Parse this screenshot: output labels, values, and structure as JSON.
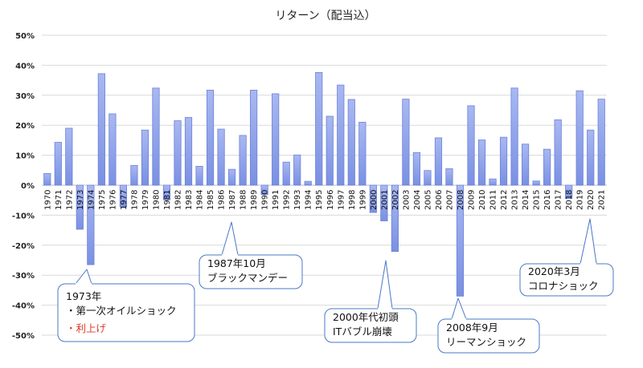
{
  "chart_data": {
    "type": "bar",
    "title": "リターン（配当込）",
    "ylim": [
      -50,
      50
    ],
    "yticks": [
      "50%",
      "40%",
      "30%",
      "20%",
      "10%",
      "0%",
      "-10%",
      "-20%",
      "-30%",
      "-40%",
      "-50%"
    ],
    "categories": [
      "1970",
      "1971",
      "1972",
      "1973",
      "1974",
      "1975",
      "1976",
      "1977",
      "1978",
      "1979",
      "1980",
      "1981",
      "1982",
      "1983",
      "1984",
      "1985",
      "1986",
      "1987",
      "1988",
      "1989",
      "1990",
      "1991",
      "1992",
      "1993",
      "1994",
      "1995",
      "1996",
      "1997",
      "1998",
      "1999",
      "2000",
      "2001",
      "2002",
      "2003",
      "2004",
      "2005",
      "2006",
      "2007",
      "2008",
      "2009",
      "2010",
      "2011",
      "2012",
      "2013",
      "2014",
      "2015",
      "2016",
      "2017",
      "2018",
      "2019",
      "2020",
      "2021"
    ],
    "values": [
      3.9,
      14.3,
      19.0,
      -14.7,
      -26.5,
      37.2,
      23.8,
      -7.2,
      6.6,
      18.4,
      32.4,
      -4.9,
      21.5,
      22.6,
      6.3,
      31.7,
      18.7,
      5.3,
      16.6,
      31.7,
      -3.1,
      30.5,
      7.7,
      10.1,
      1.3,
      37.6,
      23.0,
      33.4,
      28.6,
      21.0,
      -9.1,
      -11.9,
      -22.1,
      28.7,
      10.9,
      4.9,
      15.8,
      5.5,
      -37.0,
      26.5,
      15.1,
      2.1,
      16.0,
      32.4,
      13.7,
      1.4,
      12.0,
      21.8,
      -4.4,
      31.5,
      18.4,
      28.7
    ],
    "grid": true,
    "legend": "none"
  },
  "annotations": {
    "a1973": {
      "lines": [
        "1973年",
        "・第一次オイルショック"
      ],
      "red_line": "・利上げ"
    },
    "a1987": {
      "lines": [
        "1987年10月",
        "ブラックマンデー"
      ]
    },
    "a2000": {
      "lines": [
        "2000年代初頭",
        "ITバブル崩壊"
      ]
    },
    "a2008": {
      "lines": [
        "2008年9月",
        "リーマンショック"
      ]
    },
    "a2020": {
      "lines": [
        "2020年3月",
        "コロナショック"
      ]
    }
  },
  "colors": {
    "bar_top": "#a9b8f2",
    "bar_bottom": "#6f87de",
    "callout_border": "#4a78c8",
    "red": "#e03b2a"
  }
}
